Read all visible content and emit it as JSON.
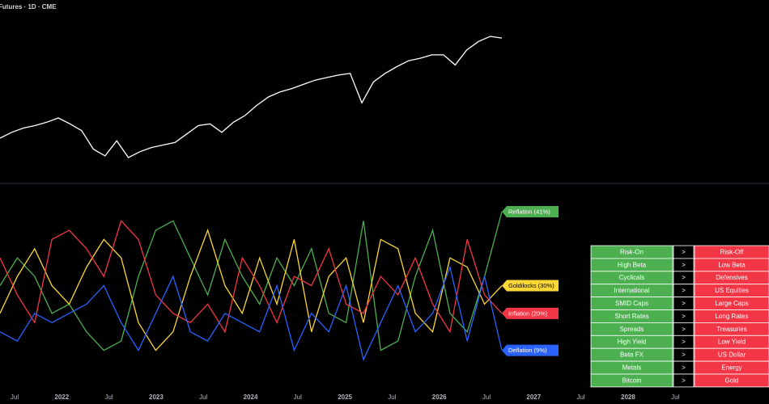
{
  "header": {
    "title": "Futures · 1D · CME"
  },
  "chart_data": [
    {
      "type": "line",
      "color": "#ffffff",
      "values": [
        33,
        40,
        45,
        48,
        52,
        57,
        50,
        42,
        20,
        12,
        30,
        10,
        17,
        22,
        25,
        28,
        38,
        48,
        50,
        40,
        52,
        60,
        72,
        82,
        88,
        92,
        97,
        102,
        105,
        108,
        110,
        75,
        100,
        110,
        118,
        125,
        128,
        132,
        132,
        120,
        138,
        148,
        154,
        152
      ]
    },
    {
      "type": "line",
      "series": [
        {
          "name": "Reflation (41%)",
          "color": "#4caf50",
          "values": [
            55,
            70,
            60,
            40,
            45,
            30,
            20,
            25,
            60,
            85,
            90,
            70,
            50,
            80,
            60,
            45,
            70,
            55,
            75,
            40,
            35,
            90,
            20,
            25,
            60,
            85,
            40,
            30,
            60,
            95
          ]
        },
        {
          "name": "Goldilocks (30%)",
          "color": "#fdd835",
          "values": [
            40,
            60,
            75,
            55,
            45,
            65,
            80,
            70,
            35,
            20,
            30,
            60,
            85,
            55,
            40,
            70,
            45,
            80,
            30,
            60,
            70,
            35,
            80,
            75,
            40,
            30,
            70,
            65,
            45,
            55
          ]
        },
        {
          "name": "Inflation (20%)",
          "color": "#f23645",
          "values": [
            70,
            50,
            35,
            80,
            85,
            75,
            60,
            90,
            80,
            50,
            40,
            35,
            45,
            30,
            70,
            55,
            35,
            60,
            55,
            75,
            45,
            40,
            60,
            50,
            70,
            45,
            30,
            80,
            50,
            40
          ]
        },
        {
          "name": "Deflation (9%)",
          "color": "#2962ff",
          "values": [
            30,
            25,
            40,
            35,
            40,
            45,
            55,
            35,
            20,
            40,
            60,
            30,
            25,
            40,
            35,
            30,
            55,
            20,
            40,
            30,
            55,
            15,
            35,
            55,
            30,
            40,
            65,
            25,
            60,
            20
          ]
        }
      ]
    }
  ],
  "x_axis": {
    "labels": [
      "Jul",
      "2022",
      "Jul",
      "2023",
      "Jul",
      "2024",
      "Jul",
      "2025",
      "Jul",
      "2026",
      "Jul",
      "2027",
      "Jul",
      "2028",
      "Jul"
    ]
  },
  "table": {
    "rows": [
      [
        "Risk-On",
        ">",
        "Risk-Off"
      ],
      [
        "High Beta",
        ">",
        "Low Beta"
      ],
      [
        "Cyclicals",
        ">",
        "Defensives"
      ],
      [
        "International",
        ">",
        "US Equities"
      ],
      [
        "SMID Caps",
        ">",
        "Large Caps"
      ],
      [
        "Short Rates",
        ">",
        "Long Rates"
      ],
      [
        "Spreads",
        ">",
        "Treasuries"
      ],
      [
        "High Yield",
        ">",
        "Low Yield"
      ],
      [
        "Beta FX",
        ">",
        "US Dollar"
      ],
      [
        "Metals",
        ">",
        "Energy"
      ],
      [
        "Bitcoin",
        ">",
        "Gold"
      ]
    ]
  }
}
